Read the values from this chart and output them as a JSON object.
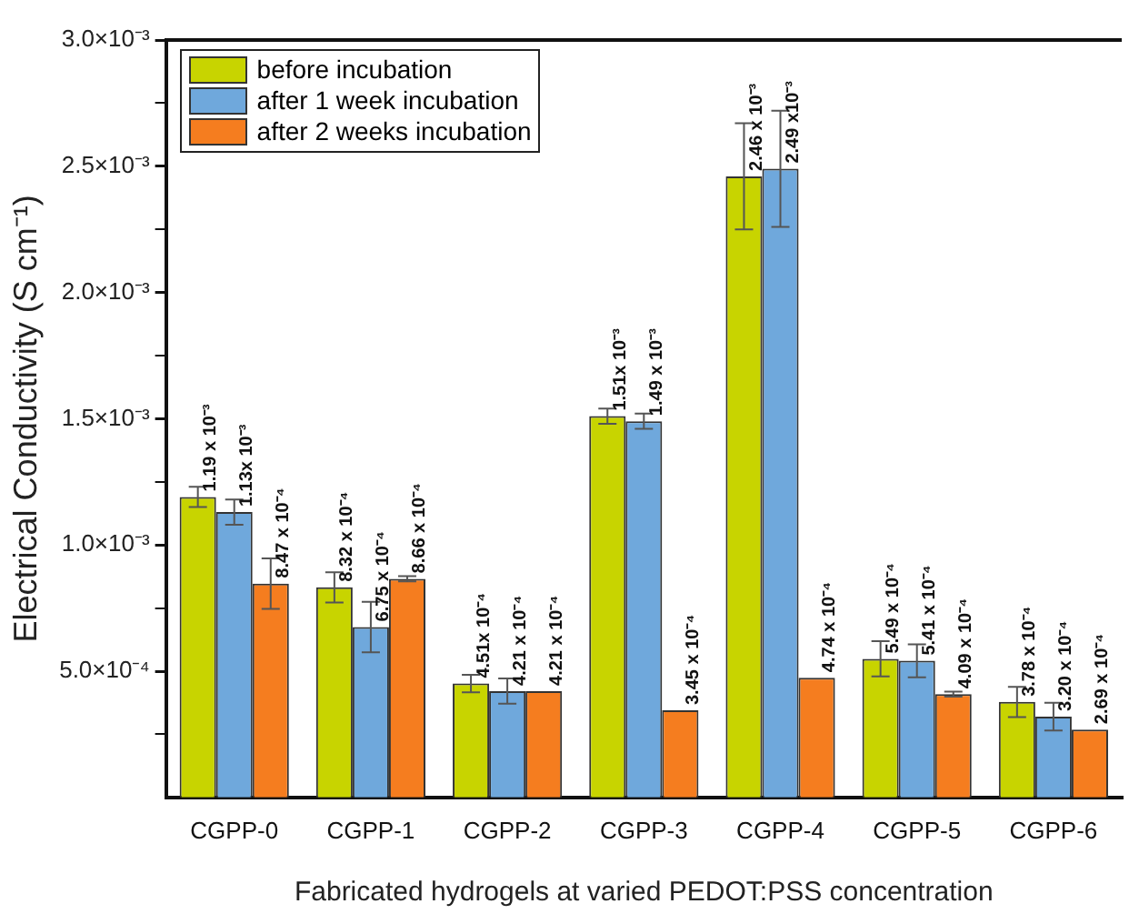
{
  "chart_data": {
    "type": "bar",
    "xlabel": "Fabricated hydrogels at varied PEDOT:PSS concentration",
    "ylabel": "Electrical Conductivity (S cm⁻¹)",
    "categories": [
      "CGPP-0",
      "CGPP-1",
      "CGPP-2",
      "CGPP-3",
      "CGPP-4",
      "CGPP-5",
      "CGPP-6"
    ],
    "series": [
      {
        "name": "before incubation",
        "color": "#c8d400",
        "values": [
          0.00119,
          0.000832,
          0.000451,
          0.00151,
          0.00246,
          0.000549,
          0.000378
        ],
        "errors": [
          4e-05,
          6e-05,
          3.5e-05,
          3e-05,
          0.00021,
          7e-05,
          6e-05
        ],
        "value_labels": [
          "1.19 x 10⁻³",
          "8.32 x 10⁻⁴",
          "4.51x 10⁻⁴",
          "1.51x 10⁻³",
          "2.46 x 10⁻³",
          "5.49 x 10⁻⁴",
          "3.78 x 10⁻⁴"
        ]
      },
      {
        "name": "after 1 week incubation",
        "color": "#6fa8dc",
        "values": [
          0.00113,
          0.000675,
          0.000421,
          0.00149,
          0.00249,
          0.000541,
          0.00032
        ],
        "errors": [
          5e-05,
          0.0001,
          5e-05,
          3e-05,
          0.00023,
          6.5e-05,
          5.5e-05
        ],
        "value_labels": [
          "1.13x 10⁻³",
          "6.75 x 10⁻⁴",
          "4.21 x 10⁻⁴",
          "1.49 x 10⁻³",
          "2.49 x10⁻³",
          "5.41 x 10⁻⁴",
          "3.20 x 10⁻⁴"
        ]
      },
      {
        "name": "after 2 weeks incubation",
        "color": "#f57d1f",
        "values": [
          0.000847,
          0.000866,
          0.000421,
          0.000345,
          0.000474,
          0.000409,
          0.000269
        ],
        "errors": [
          0.0001,
          1e-05,
          null,
          null,
          null,
          1e-05,
          null
        ],
        "value_labels": [
          "8.47 x 10⁻⁴",
          "8.66 x 10⁻⁴",
          "4.21 x 10⁻⁴",
          "3.45 x 10⁻⁴",
          "4.74 x 10⁻⁴",
          "4.09 x 10⁻⁴",
          "2.69 x 10⁻⁴"
        ]
      }
    ],
    "ylim": [
      0,
      0.003
    ],
    "yticks": [
      {
        "value": 0.00025,
        "label": null
      },
      {
        "value": 0.0005,
        "label": "5.0×10⁻⁴"
      },
      {
        "value": 0.00075,
        "label": null
      },
      {
        "value": 0.001,
        "label": "1.0×10⁻³"
      },
      {
        "value": 0.00125,
        "label": null
      },
      {
        "value": 0.0015,
        "label": "1.5×10⁻³"
      },
      {
        "value": 0.00175,
        "label": null
      },
      {
        "value": 0.002,
        "label": "2.0×10⁻³"
      },
      {
        "value": 0.00225,
        "label": null
      },
      {
        "value": 0.0025,
        "label": "2.5×10⁻³"
      },
      {
        "value": 0.00275,
        "label": null
      },
      {
        "value": 0.003,
        "label": "3.0×10⁻³"
      }
    ],
    "grid": false,
    "legend": "top left"
  }
}
